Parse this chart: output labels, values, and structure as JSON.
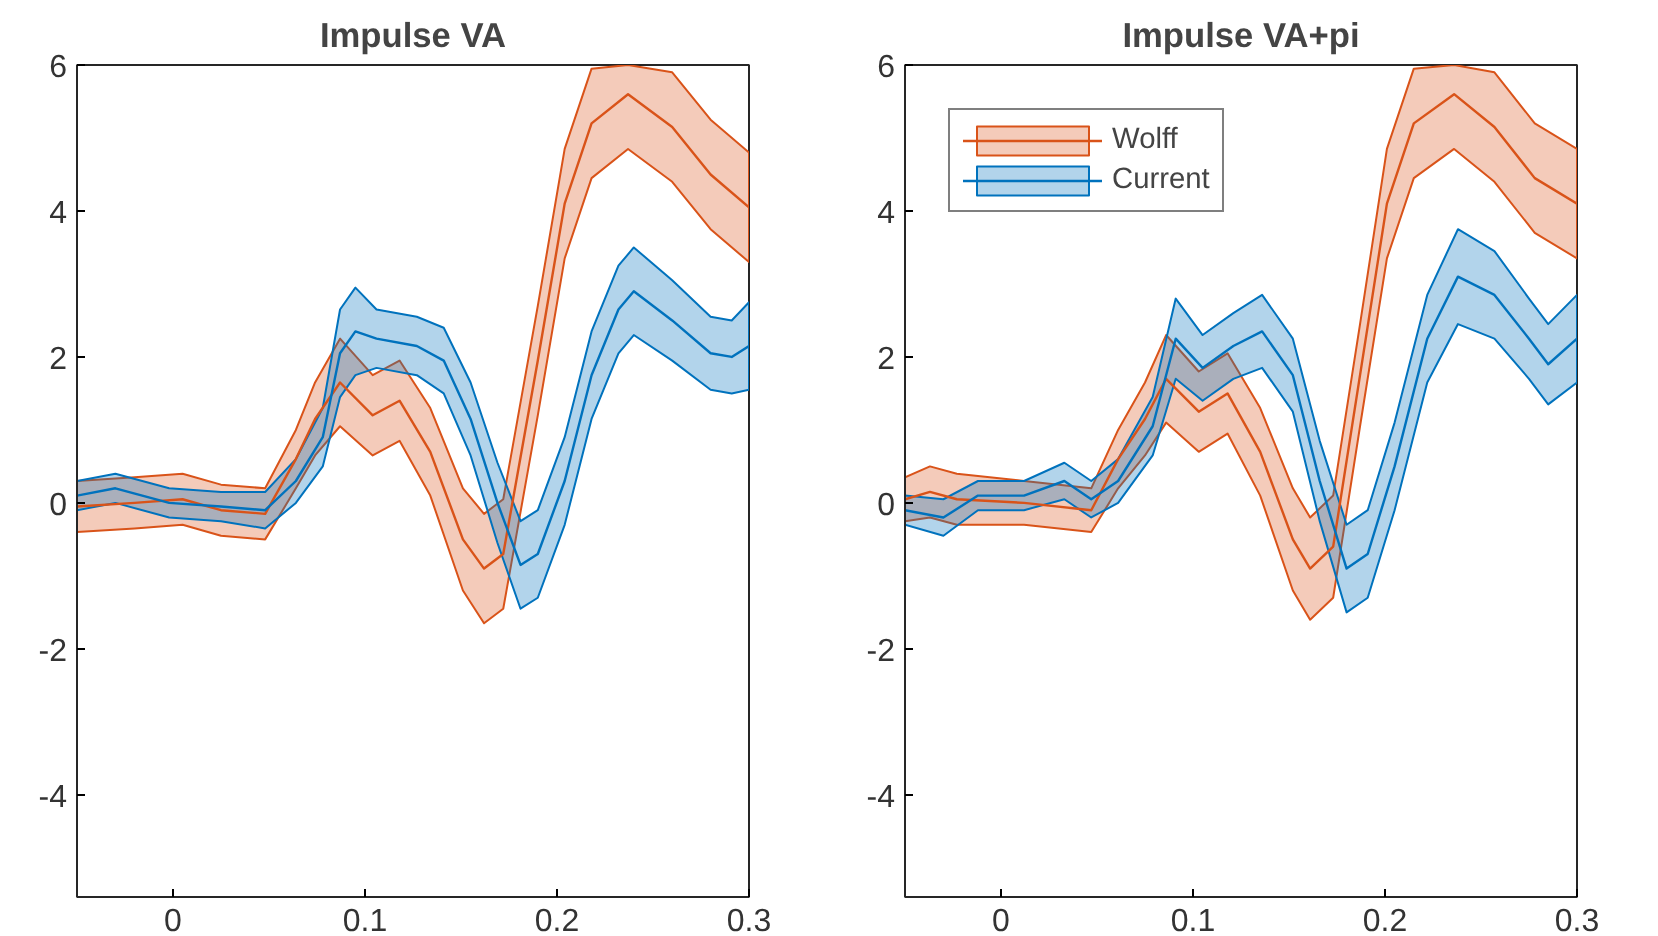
{
  "chart_data": [
    {
      "type": "line",
      "title": "Impulse VA",
      "xlim": [
        -0.05,
        0.3
      ],
      "xticks": [
        0,
        0.1,
        0.2,
        0.3
      ],
      "ylim": [
        -5.4,
        6
      ],
      "yticks": [
        -4,
        -2,
        0,
        2,
        4,
        6
      ],
      "grid": false,
      "legend": false,
      "series": [
        {
          "color": "#d95319",
          "x": [
            -0.05,
            -0.02,
            0.005,
            0.025,
            0.048,
            0.064,
            0.074,
            0.087,
            0.104,
            0.118,
            0.134,
            0.151,
            0.162,
            0.172,
            0.19,
            0.204,
            0.218,
            0.237,
            0.26,
            0.28,
            0.3
          ],
          "values": [
            -0.05,
            0,
            0.05,
            -0.1,
            -0.15,
            0.6,
            1.15,
            1.65,
            1.2,
            1.4,
            0.7,
            -0.5,
            -0.9,
            -0.7,
            1.95,
            4.1,
            5.2,
            5.6,
            5.15,
            4.5,
            4.05
          ],
          "lower": [
            -0.4,
            -0.35,
            -0.3,
            -0.45,
            -0.5,
            0.2,
            0.65,
            1.05,
            0.65,
            0.85,
            0.1,
            -1.2,
            -1.65,
            -1.45,
            1.2,
            3.35,
            4.45,
            4.85,
            4.4,
            3.75,
            3.3
          ],
          "upper": [
            0.3,
            0.35,
            0.4,
            0.25,
            0.2,
            1.0,
            1.65,
            2.25,
            1.75,
            1.95,
            1.3,
            0.2,
            -0.15,
            0.05,
            2.7,
            4.85,
            5.95,
            6,
            5.9,
            5.25,
            4.8
          ]
        },
        {
          "color": "#0072bd",
          "x": [
            -0.05,
            -0.03,
            -0.002,
            0.025,
            0.048,
            0.064,
            0.078,
            0.087,
            0.095,
            0.106,
            0.127,
            0.141,
            0.155,
            0.169,
            0.181,
            0.19,
            0.204,
            0.218,
            0.232,
            0.24,
            0.26,
            0.28,
            0.291,
            0.3
          ],
          "values": [
            0.1,
            0.2,
            0,
            -0.05,
            -0.1,
            0.3,
            0.9,
            2.05,
            2.35,
            2.25,
            2.15,
            1.95,
            1.15,
            0,
            -0.85,
            -0.7,
            0.3,
            1.75,
            2.65,
            2.9,
            2.5,
            2.05,
            2.0,
            2.15
          ],
          "lower": [
            -0.1,
            0,
            -0.2,
            -0.25,
            -0.35,
            0,
            0.5,
            1.45,
            1.75,
            1.85,
            1.75,
            1.5,
            0.65,
            -0.55,
            -1.45,
            -1.3,
            -0.3,
            1.15,
            2.05,
            2.3,
            1.95,
            1.55,
            1.5,
            1.55
          ],
          "upper": [
            0.3,
            0.4,
            0.2,
            0.15,
            0.15,
            0.6,
            1.3,
            2.65,
            2.95,
            2.65,
            2.55,
            2.4,
            1.65,
            0.55,
            -0.25,
            -0.1,
            0.9,
            2.35,
            3.25,
            3.5,
            3.05,
            2.55,
            2.5,
            2.75
          ]
        }
      ]
    },
    {
      "type": "line",
      "title": "Impulse VA+pi",
      "xlim": [
        -0.05,
        0.3
      ],
      "xticks": [
        0,
        0.1,
        0.2,
        0.3
      ],
      "ylim": [
        -5.4,
        6
      ],
      "yticks": [
        -4,
        -2,
        0,
        2,
        4,
        6
      ],
      "grid": false,
      "legend": "top left",
      "series": [
        {
          "name": "Wolff",
          "color": "#d95319",
          "x": [
            -0.05,
            -0.037,
            -0.023,
            0.012,
            0.047,
            0.061,
            0.075,
            0.086,
            0.103,
            0.118,
            0.135,
            0.152,
            0.161,
            0.173,
            0.187,
            0.201,
            0.215,
            0.236,
            0.257,
            0.278,
            0.3
          ],
          "values": [
            0.05,
            0.15,
            0.05,
            0,
            -0.1,
            0.6,
            1.15,
            1.7,
            1.25,
            1.5,
            0.7,
            -0.5,
            -0.9,
            -0.6,
            1.75,
            4.1,
            5.2,
            5.6,
            5.15,
            4.45,
            4.1
          ],
          "lower": [
            -0.25,
            -0.2,
            -0.3,
            -0.3,
            -0.4,
            0.2,
            0.65,
            1.1,
            0.7,
            0.95,
            0.1,
            -1.2,
            -1.6,
            -1.3,
            1.05,
            3.35,
            4.45,
            4.85,
            4.4,
            3.7,
            3.35
          ],
          "upper": [
            0.35,
            0.5,
            0.4,
            0.3,
            0.2,
            1.0,
            1.65,
            2.3,
            1.8,
            2.05,
            1.3,
            0.2,
            -0.2,
            0.1,
            2.45,
            4.85,
            5.95,
            6,
            5.9,
            5.2,
            4.85
          ]
        },
        {
          "name": "Current",
          "color": "#0072bd",
          "x": [
            -0.05,
            -0.03,
            -0.012,
            0.012,
            0.033,
            0.047,
            0.061,
            0.079,
            0.091,
            0.105,
            0.121,
            0.136,
            0.152,
            0.166,
            0.18,
            0.191,
            0.205,
            0.222,
            0.238,
            0.257,
            0.275,
            0.285,
            0.3
          ],
          "values": [
            -0.1,
            -0.2,
            0.1,
            0.1,
            0.3,
            0.05,
            0.3,
            1.05,
            2.25,
            1.85,
            2.15,
            2.35,
            1.75,
            0.3,
            -0.9,
            -0.7,
            0.5,
            2.25,
            3.1,
            2.85,
            2.25,
            1.9,
            2.25
          ],
          "lower": [
            -0.3,
            -0.45,
            -0.1,
            -0.1,
            0.05,
            -0.2,
            0,
            0.65,
            1.7,
            1.4,
            1.7,
            1.85,
            1.25,
            -0.25,
            -1.5,
            -1.3,
            -0.1,
            1.65,
            2.45,
            2.25,
            1.7,
            1.35,
            1.65
          ],
          "upper": [
            0.1,
            0.05,
            0.3,
            0.3,
            0.55,
            0.3,
            0.6,
            1.45,
            2.8,
            2.3,
            2.6,
            2.85,
            2.25,
            0.85,
            -0.3,
            -0.1,
            1.1,
            2.85,
            3.75,
            3.45,
            2.8,
            2.45,
            2.85
          ]
        }
      ]
    }
  ]
}
